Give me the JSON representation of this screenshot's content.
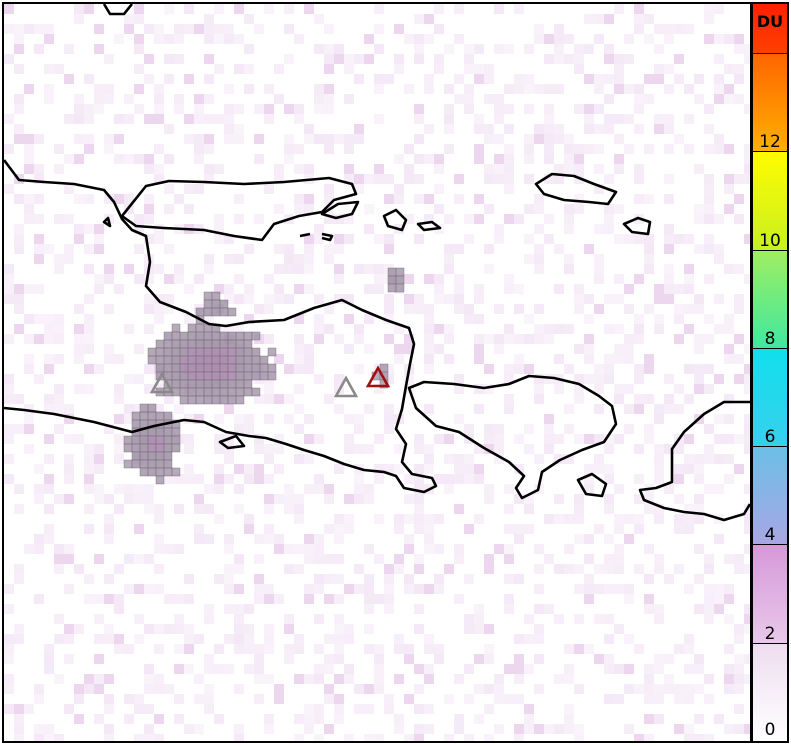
{
  "colorbar": {
    "unit": "DU",
    "ticks": [
      {
        "value": 0,
        "label": "0"
      },
      {
        "value": 2,
        "label": "2"
      },
      {
        "value": 4,
        "label": "4"
      },
      {
        "value": 6,
        "label": "6"
      },
      {
        "value": 8,
        "label": "8"
      },
      {
        "value": 10,
        "label": "10"
      },
      {
        "value": 12,
        "label": "12"
      },
      {
        "value": 14,
        "label": ""
      }
    ],
    "range": [
      0,
      15
    ],
    "colors": [
      {
        "from": 0,
        "to": 2,
        "start": "#ffffff",
        "end": "#eedcf0"
      },
      {
        "from": 2,
        "to": 4,
        "start": "#e8c8ea",
        "end": "#d698d8"
      },
      {
        "from": 4,
        "to": 6,
        "start": "#a8a6e4",
        "end": "#6cbfe8"
      },
      {
        "from": 6,
        "to": 8,
        "start": "#38d0ec",
        "end": "#10e0ec"
      },
      {
        "from": 8,
        "to": 10,
        "start": "#40e8a0",
        "end": "#a0ee60"
      },
      {
        "from": 10,
        "to": 12,
        "start": "#c8f020",
        "end": "#fffc00"
      },
      {
        "from": 12,
        "to": 14,
        "start": "#ffb000",
        "end": "#ff6400"
      },
      {
        "from": 14,
        "to": 15,
        "start": "#ff4000",
        "end": "#ff2000"
      }
    ]
  },
  "volcanoes": [
    {
      "name": "volcano-marker",
      "color": "#8a8a8a"
    },
    {
      "name": "volcano-marker",
      "color": "#8a8a8a"
    },
    {
      "name": "volcano-marker-highlighted",
      "color": "#a01010"
    }
  ],
  "plume_color": "#9a8aa0",
  "coastline_color": "#000000"
}
